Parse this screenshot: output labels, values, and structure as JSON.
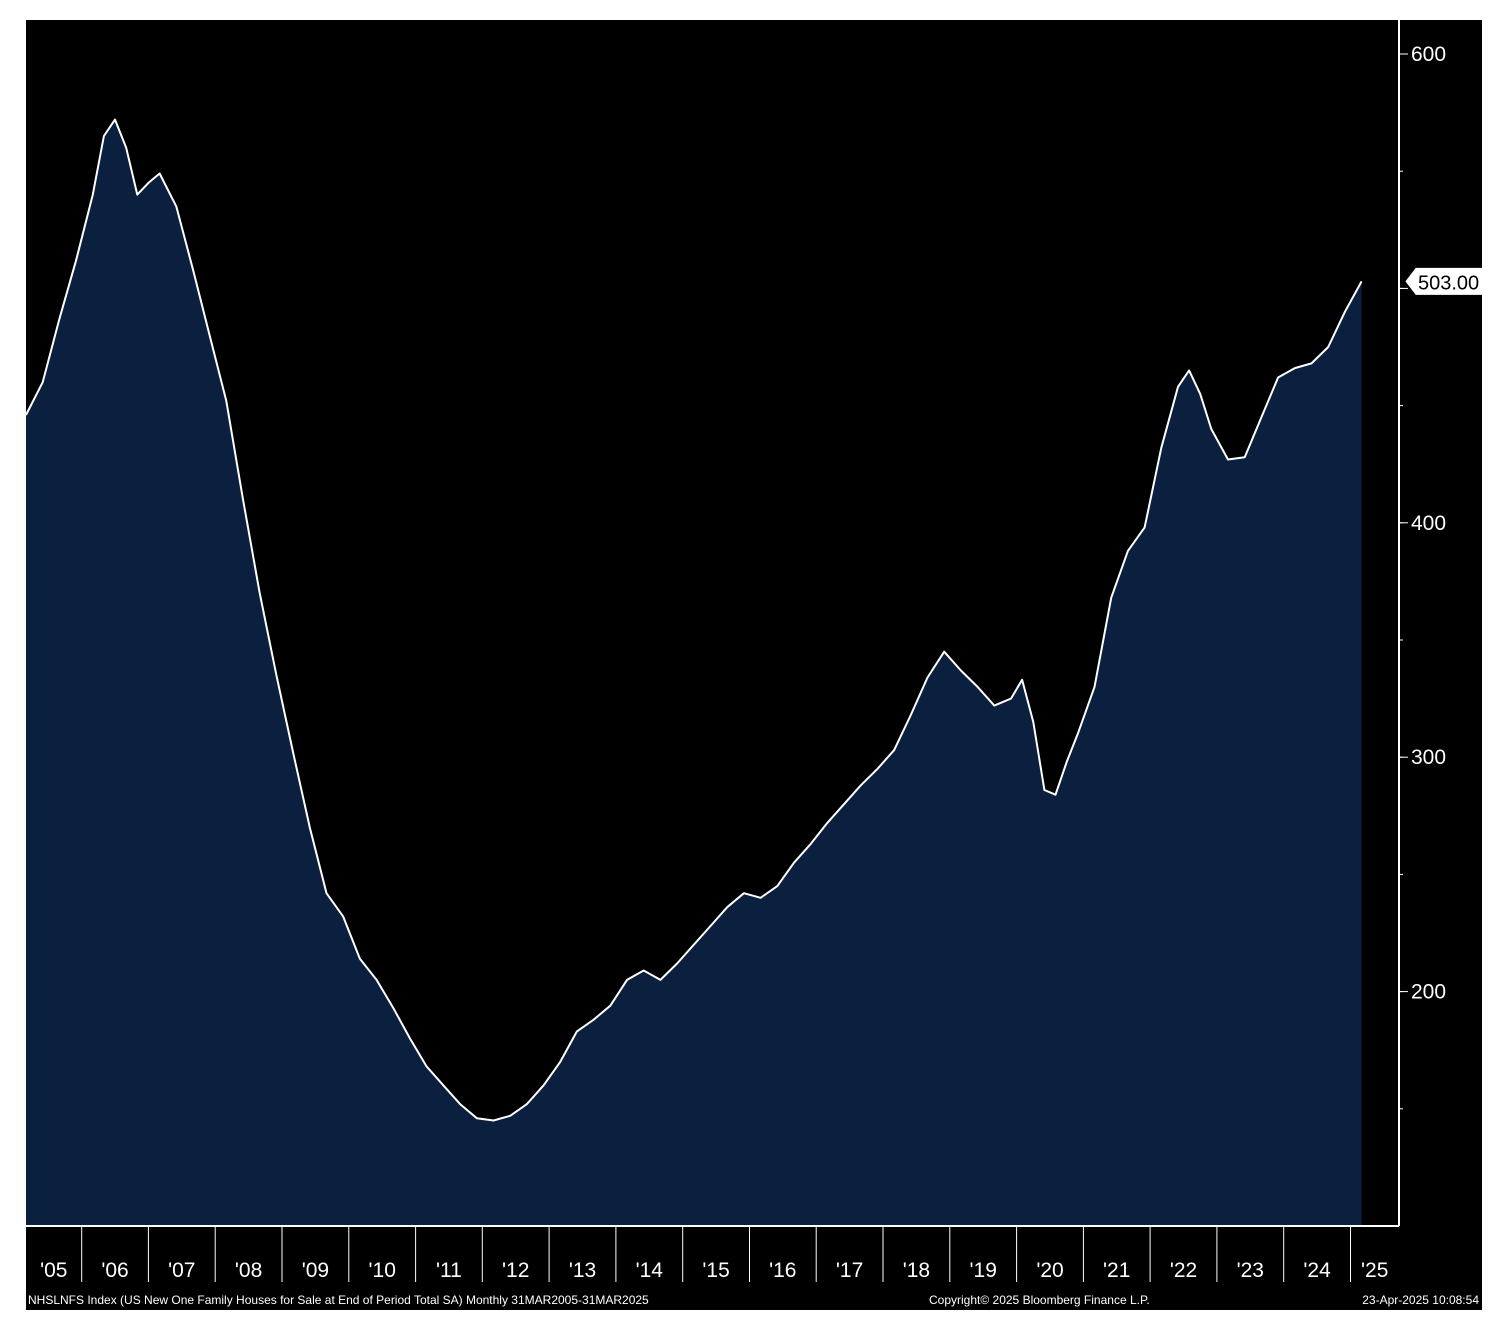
{
  "chart_data": {
    "type": "area",
    "title": "",
    "xlabel": "",
    "ylabel": "",
    "x_tick_labels": [
      "'05",
      "'06",
      "'07",
      "'08",
      "'09",
      "'10",
      "'11",
      "'12",
      "'13",
      "'14",
      "'15",
      "'16",
      "'17",
      "'18",
      "'19",
      "'20",
      "'21",
      "'22",
      "'23",
      "'24",
      "'25"
    ],
    "y_ticks": [
      200,
      300,
      400,
      500,
      600
    ],
    "y_tick_labels": [
      "200",
      "300",
      "400",
      "600"
    ],
    "ylim": [
      100,
      615
    ],
    "xlim": [
      "2005-03",
      "2025-06"
    ],
    "grid": false,
    "y_axis_side": "right",
    "line_color": "#ffffff",
    "fill_color": "#0b1f3e",
    "background": "#000000",
    "last_value_label": "503.00",
    "series": [
      {
        "points": [
          [
            "2005-03",
            446
          ],
          [
            "2005-06",
            460
          ],
          [
            "2005-09",
            487
          ],
          [
            "2005-12",
            512
          ],
          [
            "2006-03",
            540
          ],
          [
            "2006-05",
            565
          ],
          [
            "2006-07",
            572
          ],
          [
            "2006-09",
            560
          ],
          [
            "2006-11",
            540
          ],
          [
            "2007-01",
            545
          ],
          [
            "2007-03",
            549
          ],
          [
            "2007-06",
            535
          ],
          [
            "2007-09",
            508
          ],
          [
            "2007-12",
            480
          ],
          [
            "2008-03",
            452
          ],
          [
            "2008-06",
            410
          ],
          [
            "2008-09",
            370
          ],
          [
            "2008-12",
            335
          ],
          [
            "2009-03",
            302
          ],
          [
            "2009-06",
            270
          ],
          [
            "2009-09",
            242
          ],
          [
            "2009-12",
            232
          ],
          [
            "2010-03",
            214
          ],
          [
            "2010-06",
            205
          ],
          [
            "2010-09",
            193
          ],
          [
            "2010-12",
            180
          ],
          [
            "2011-03",
            168
          ],
          [
            "2011-06",
            160
          ],
          [
            "2011-09",
            152
          ],
          [
            "2011-12",
            146
          ],
          [
            "2012-03",
            145
          ],
          [
            "2012-06",
            147
          ],
          [
            "2012-09",
            152
          ],
          [
            "2012-12",
            160
          ],
          [
            "2013-03",
            170
          ],
          [
            "2013-06",
            183
          ],
          [
            "2013-09",
            188
          ],
          [
            "2013-12",
            194
          ],
          [
            "2014-03",
            205
          ],
          [
            "2014-06",
            209
          ],
          [
            "2014-09",
            205
          ],
          [
            "2014-12",
            212
          ],
          [
            "2015-03",
            220
          ],
          [
            "2015-06",
            228
          ],
          [
            "2015-09",
            236
          ],
          [
            "2015-12",
            242
          ],
          [
            "2016-03",
            240
          ],
          [
            "2016-06",
            245
          ],
          [
            "2016-09",
            255
          ],
          [
            "2016-12",
            263
          ],
          [
            "2017-03",
            272
          ],
          [
            "2017-06",
            280
          ],
          [
            "2017-09",
            288
          ],
          [
            "2017-12",
            295
          ],
          [
            "2018-03",
            303
          ],
          [
            "2018-06",
            318
          ],
          [
            "2018-09",
            334
          ],
          [
            "2018-12",
            345
          ],
          [
            "2019-03",
            337
          ],
          [
            "2019-06",
            330
          ],
          [
            "2019-09",
            322
          ],
          [
            "2019-12",
            325
          ],
          [
            "2020-02",
            333
          ],
          [
            "2020-04",
            315
          ],
          [
            "2020-06",
            286
          ],
          [
            "2020-08",
            284
          ],
          [
            "2020-10",
            298
          ],
          [
            "2020-12",
            310
          ],
          [
            "2021-03",
            330
          ],
          [
            "2021-06",
            368
          ],
          [
            "2021-09",
            388
          ],
          [
            "2021-12",
            398
          ],
          [
            "2022-03",
            432
          ],
          [
            "2022-06",
            458
          ],
          [
            "2022-08",
            465
          ],
          [
            "2022-10",
            455
          ],
          [
            "2022-12",
            440
          ],
          [
            "2023-03",
            427
          ],
          [
            "2023-06",
            428
          ],
          [
            "2023-09",
            445
          ],
          [
            "2023-12",
            462
          ],
          [
            "2024-03",
            466
          ],
          [
            "2024-06",
            468
          ],
          [
            "2024-09",
            475
          ],
          [
            "2024-12",
            490
          ],
          [
            "2025-03",
            503
          ]
        ]
      }
    ]
  },
  "footer": {
    "left": "NHSLNFS Index (US New One Family Houses for Sale at End of Period Total SA)  Monthly 31MAR2005-31MAR2025",
    "middle": "Copyright© 2025 Bloomberg Finance L.P.",
    "right": "23-Apr-2025 10:08:54"
  }
}
